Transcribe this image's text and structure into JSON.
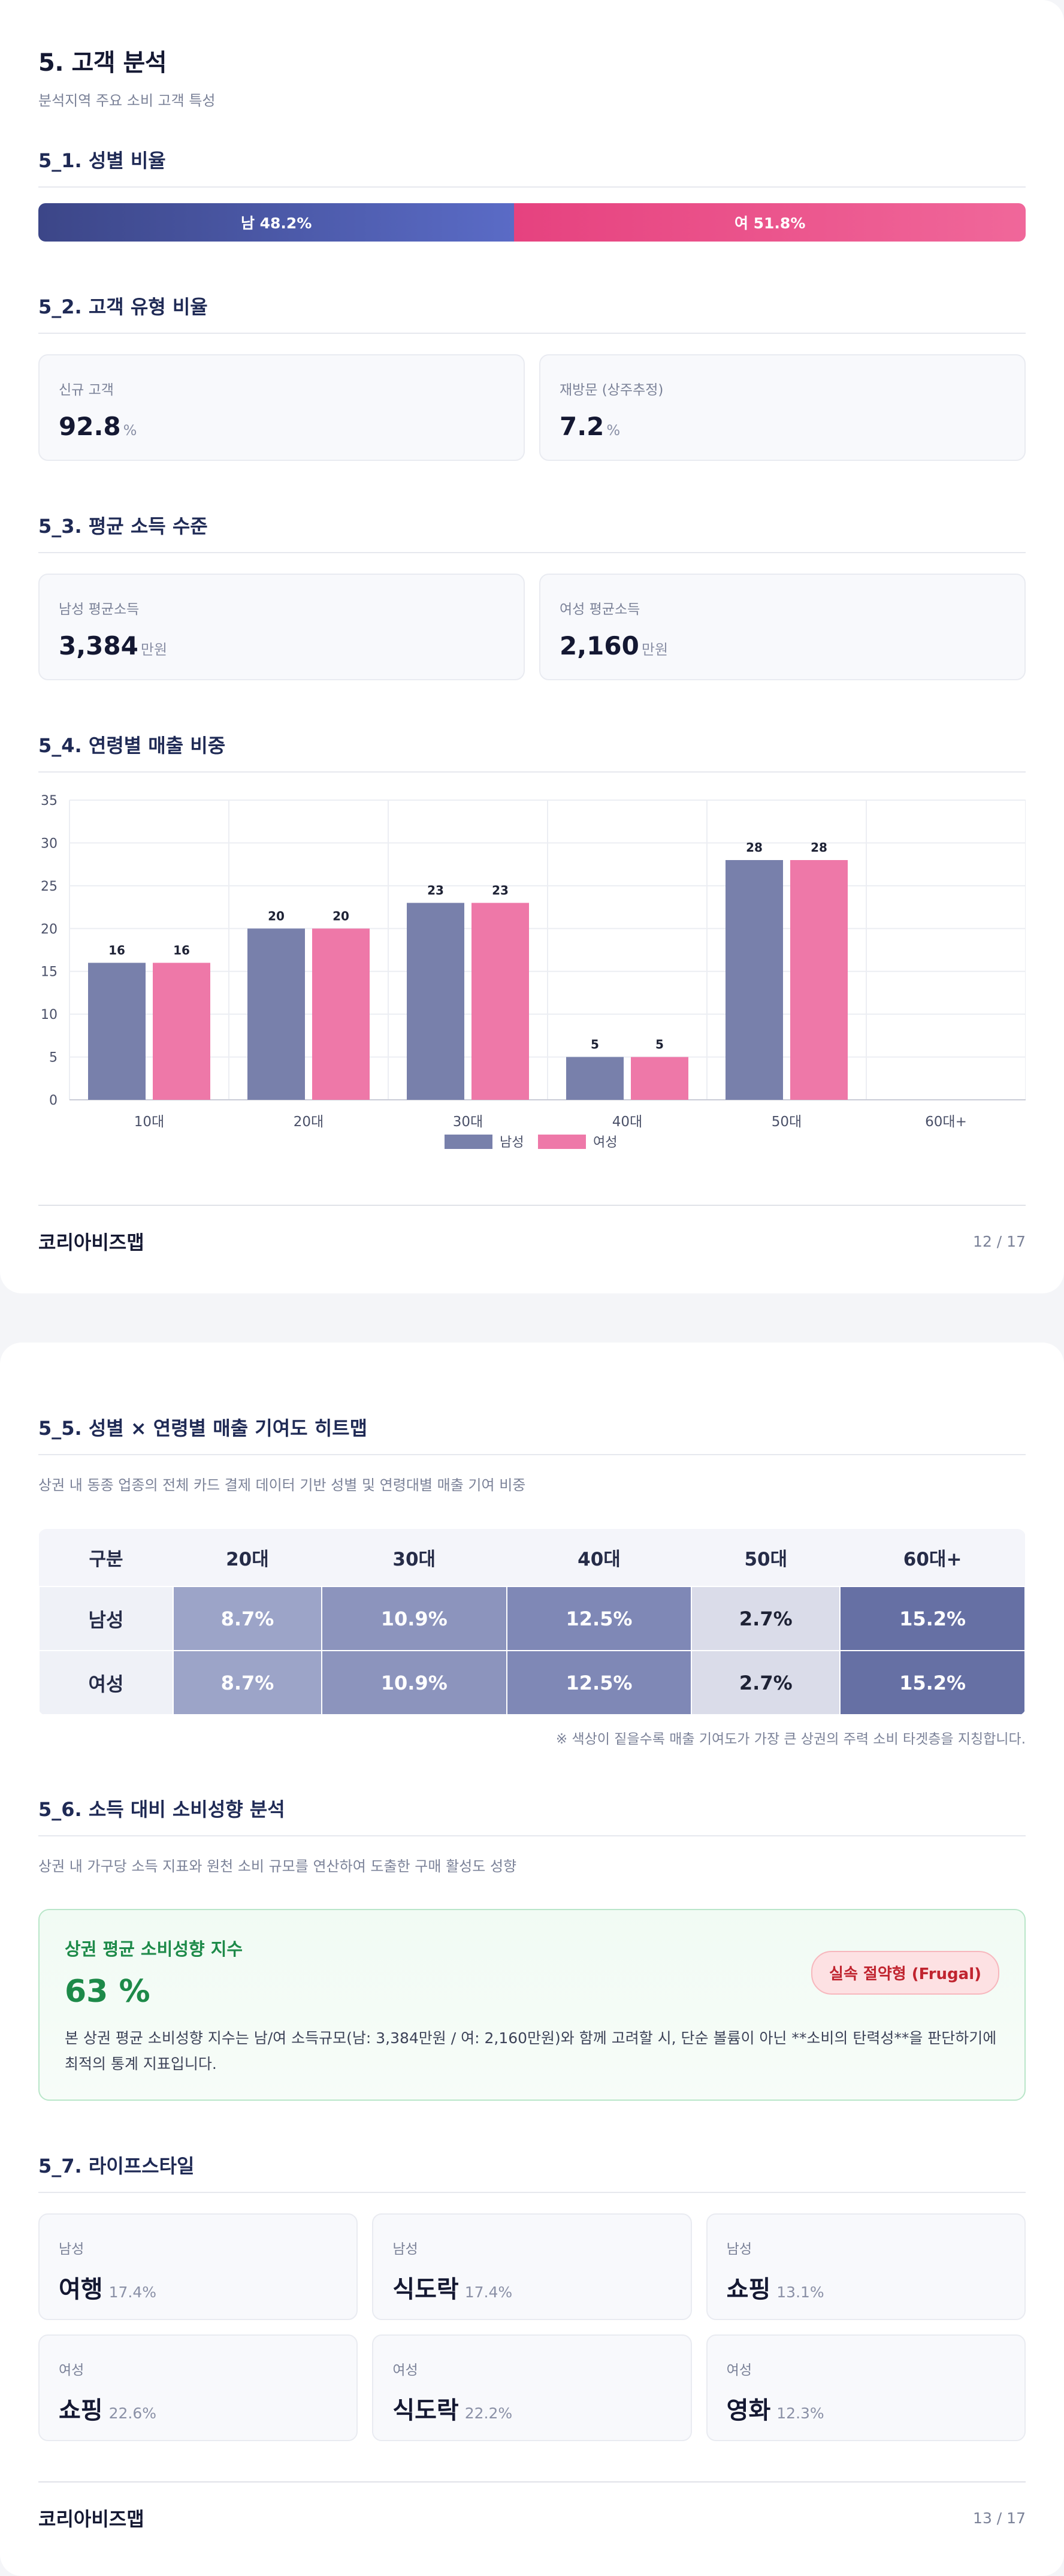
{
  "page1": {
    "title": "5. 고객 분석",
    "subtitle": "분석지역 주요 소비 고객 특성",
    "gender": {
      "heading": "5_1. 성별 비율",
      "male_label": "남 48.2%",
      "female_label": "여 51.8%",
      "male_share": 48.2,
      "female_share": 51.8
    },
    "customer_type": {
      "heading": "5_2. 고객 유형 비율",
      "cards": [
        {
          "label": "신규 고객",
          "value": "92.8",
          "unit": "%"
        },
        {
          "label": "재방문 (상주추정)",
          "value": "7.2",
          "unit": "%"
        }
      ]
    },
    "income": {
      "heading": "5_3. 평균 소득 수준",
      "cards": [
        {
          "label": "남성 평균소득",
          "value": "3,384",
          "unit": "만원"
        },
        {
          "label": "여성 평균소득",
          "value": "2,160",
          "unit": "만원"
        }
      ]
    },
    "age_sales": {
      "heading": "5_4. 연령별 매출 비중"
    },
    "footer": {
      "brand": "코리아비즈맵",
      "page": "12 / 17"
    }
  },
  "chart_data": {
    "type": "bar",
    "categories": [
      "10대",
      "20대",
      "30대",
      "40대",
      "50대",
      "60대+"
    ],
    "series": [
      {
        "name": "남성",
        "values": [
          16,
          20,
          23,
          5,
          28,
          0
        ],
        "labels": [
          "16",
          "20",
          "23",
          "5",
          "28",
          ""
        ],
        "color": "#7880ab"
      },
      {
        "name": "여성",
        "values": [
          16,
          20,
          23,
          5,
          28,
          0
        ],
        "labels": [
          "16",
          "20",
          "23",
          "5",
          "28",
          ""
        ],
        "color": "#ee78a8"
      }
    ],
    "ylim": [
      0,
      35
    ],
    "yticks": [
      "0",
      "5",
      "10",
      "15",
      "20",
      "25",
      "30",
      "35"
    ],
    "grid": true,
    "legend": "bottom-center"
  },
  "page2": {
    "heatmap": {
      "heading": "5_5. 성별 × 연령별 매출 기여도 히트맵",
      "desc": "상권 내 동종 업종의 전체 카드 결제 데이터 기반 성별 및 연령대별 매출 기여 비중",
      "columns": [
        "구분",
        "20대",
        "30대",
        "40대",
        "50대",
        "60대+"
      ],
      "rows": [
        {
          "label": "남성",
          "cells": [
            "8.7%",
            "10.9%",
            "12.5%",
            "2.7%",
            "15.2%"
          ]
        },
        {
          "label": "여성",
          "cells": [
            "8.7%",
            "10.9%",
            "12.5%",
            "2.7%",
            "15.2%"
          ]
        }
      ],
      "cell_colors": [
        "#9ca4c8",
        "#8c94bd",
        "#7f88b6",
        "#dadce9",
        "#6670a4"
      ],
      "cell_text_colors": [
        "#ffffff",
        "#ffffff",
        "#ffffff",
        "#1e2235",
        "#ffffff"
      ],
      "note": "※ 색상이 짙을수록 매출 기여도가 가장 큰 상권의 주력 소비 타겟층을 지칭합니다."
    },
    "spending": {
      "heading": "5_6. 소득 대비 소비성향 분석",
      "desc": "상권 내 가구당 소득 지표와 원천 소비 규모를 연산하여 도출한 구매 활성도 성향",
      "card_title": "상권 평균 소비성향 지수",
      "value": "63 %",
      "badge": "실속 절약형 (Frugal)",
      "text": "본 상권 평균 소비성향 지수는 남/여 소득규모(남: 3,384만원 / 여: 2,160만원)와 함께 고려할 시, 단순 볼륨이 아닌 **소비의 탄력성**을 판단하기에 최적의 통계 지표입니다."
    },
    "lifestyle": {
      "heading": "5_7. 라이프스타일",
      "items": [
        {
          "gender": "남성",
          "name": "여행",
          "pct": "17.4%"
        },
        {
          "gender": "남성",
          "name": "식도락",
          "pct": "17.4%"
        },
        {
          "gender": "남성",
          "name": "쇼핑",
          "pct": "13.1%"
        },
        {
          "gender": "여성",
          "name": "쇼핑",
          "pct": "22.6%"
        },
        {
          "gender": "여성",
          "name": "식도락",
          "pct": "22.2%"
        },
        {
          "gender": "여성",
          "name": "영화",
          "pct": "12.3%"
        }
      ]
    },
    "footer": {
      "brand": "코리아비즈맵",
      "page": "13 / 17"
    }
  }
}
